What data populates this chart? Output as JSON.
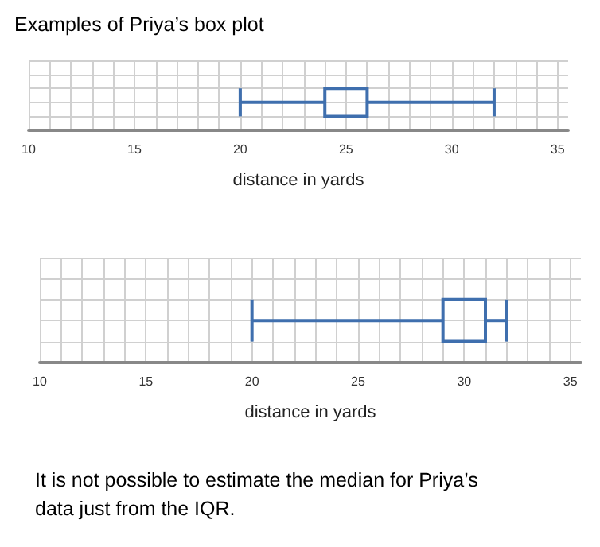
{
  "chart_data": [
    {
      "type": "box",
      "title": "Examples of Priya’s box plot",
      "xlabel": "distance in yards",
      "orientation": "horizontal",
      "categories": [
        null
      ],
      "grid": true,
      "xlim": [
        10,
        35.5
      ],
      "xticks": [
        10,
        {
          "value": 11,
          "label": null
        },
        {
          "value": 12,
          "label": null
        },
        {
          "value": 13,
          "label": null
        },
        {
          "value": 14,
          "label": null
        },
        15,
        {
          "value": 16,
          "label": null
        },
        {
          "value": 17,
          "label": null
        },
        {
          "value": 18,
          "label": null
        },
        {
          "value": 19,
          "label": null
        },
        20,
        {
          "value": 21,
          "label": null
        },
        {
          "value": 22,
          "label": null
        },
        {
          "value": 23,
          "label": null
        },
        {
          "value": 24,
          "label": null
        },
        25,
        {
          "value": 26,
          "label": null
        },
        {
          "value": 27,
          "label": null
        },
        {
          "value": 28,
          "label": null
        },
        {
          "value": 29,
          "label": null
        },
        30,
        {
          "value": 31,
          "label": null
        },
        {
          "value": 32,
          "label": null
        },
        {
          "value": 33,
          "label": null
        },
        {
          "value": 34,
          "label": null
        },
        35
      ],
      "series": [
        {
          "color": "#3f6fae",
          "boxes": [
            {
              "low": 20,
              "q1": 24,
              "median": null,
              "q3": 26,
              "high": 32
            }
          ]
        }
      ]
    },
    {
      "type": "box",
      "xlabel": "distance in yards",
      "orientation": "horizontal",
      "categories": [
        null
      ],
      "grid": true,
      "xlim": [
        10,
        35.5
      ],
      "xticks": [
        10,
        {
          "value": 11,
          "label": null
        },
        {
          "value": 12,
          "label": null
        },
        {
          "value": 13,
          "label": null
        },
        {
          "value": 14,
          "label": null
        },
        15,
        {
          "value": 16,
          "label": null
        },
        {
          "value": 17,
          "label": null
        },
        {
          "value": 18,
          "label": null
        },
        {
          "value": 19,
          "label": null
        },
        20,
        {
          "value": 21,
          "label": null
        },
        {
          "value": 22,
          "label": null
        },
        {
          "value": 23,
          "label": null
        },
        {
          "value": 24,
          "label": null
        },
        25,
        {
          "value": 26,
          "label": null
        },
        {
          "value": 27,
          "label": null
        },
        {
          "value": 28,
          "label": null
        },
        {
          "value": 29,
          "label": null
        },
        30,
        {
          "value": 31,
          "label": null
        },
        {
          "value": 32,
          "label": null
        },
        {
          "value": 33,
          "label": null
        },
        {
          "value": 34,
          "label": null
        },
        35
      ],
      "series": [
        {
          "color": "#3f6fae",
          "boxes": [
            {
              "low": 20,
              "q1": 29,
              "median": null,
              "q3": 31,
              "high": 32
            }
          ]
        }
      ],
      "annotations": [
        "It is not possible to estimate the median for Priya’s data just from the IQR."
      ]
    }
  ]
}
